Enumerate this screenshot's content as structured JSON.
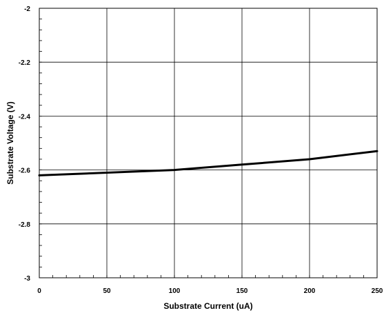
{
  "chart_data": {
    "type": "line",
    "title": "",
    "xlabel": "Substrate Current (uA)",
    "ylabel": "Substrate Voltage (V)",
    "xlim": [
      0,
      250
    ],
    "ylim": [
      -3,
      -2
    ],
    "x_ticks": [
      0,
      50,
      100,
      150,
      200,
      250
    ],
    "x_tick_labels": [
      "0",
      "50",
      "100",
      "150",
      "200",
      "250"
    ],
    "y_ticks": [
      -2,
      -2.2,
      -2.4,
      -2.6,
      -2.8,
      -3
    ],
    "y_tick_labels": [
      "-2",
      "-2.2",
      "-2.4",
      "-2.6",
      "-2.8",
      "-3"
    ],
    "x_minor_step": 10,
    "y_minor_step": 0.04,
    "grid": true,
    "legend": "none",
    "series": [
      {
        "color": "#000000",
        "x": [
          0,
          50,
          100,
          150,
          200,
          250
        ],
        "y": [
          -2.62,
          -2.61,
          -2.6,
          -2.58,
          -2.56,
          -2.53
        ]
      }
    ]
  }
}
